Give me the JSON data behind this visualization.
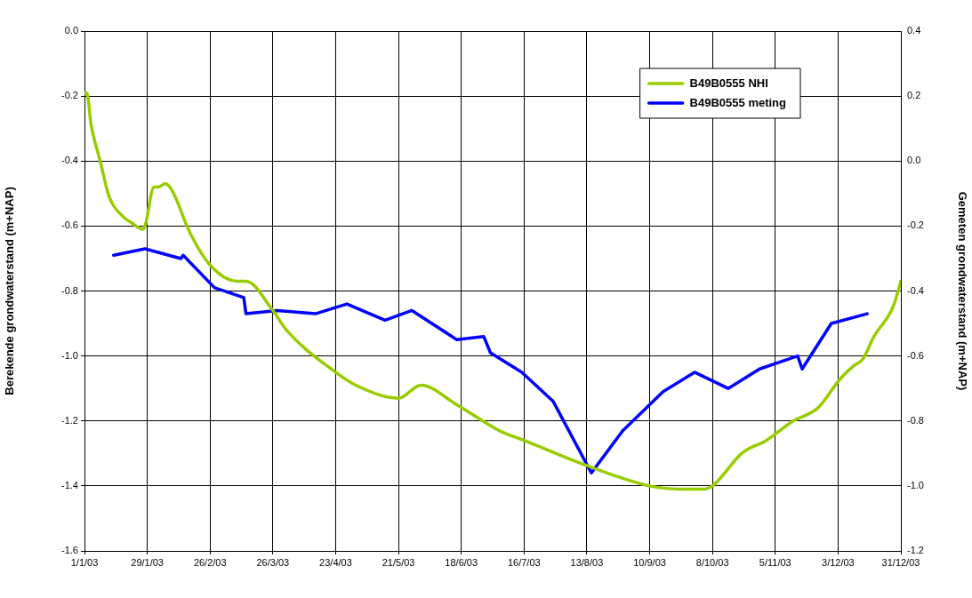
{
  "chart_data": {
    "type": "line",
    "xlabel": null,
    "ylabel": "Berekende grondwaterstand (m+NAP)",
    "y2label": "Gemeten grondwaterstand (m+NAP)",
    "xlim": [
      "2003-01-01",
      "2003-12-31"
    ],
    "xticks": [
      {
        "value": "2003-01-01",
        "label": "1/1/03"
      },
      {
        "value": "2003-01-29",
        "label": "29/1/03"
      },
      {
        "value": "2003-02-26",
        "label": "26/2/03"
      },
      {
        "value": "2003-03-26",
        "label": "26/3/03"
      },
      {
        "value": "2003-04-23",
        "label": "23/4/03"
      },
      {
        "value": "2003-05-21",
        "label": "21/5/03"
      },
      {
        "value": "2003-06-18",
        "label": "18/6/03"
      },
      {
        "value": "2003-07-16",
        "label": "16/7/03"
      },
      {
        "value": "2003-08-13",
        "label": "13/8/03"
      },
      {
        "value": "2003-09-10",
        "label": "10/9/03"
      },
      {
        "value": "2003-10-08",
        "label": "8/10/03"
      },
      {
        "value": "2003-11-05",
        "label": "5/11/03"
      },
      {
        "value": "2003-12-03",
        "label": "3/12/03"
      },
      {
        "value": "2003-12-31",
        "label": "31/12/03"
      }
    ],
    "ylim": [
      -1.6,
      0.0
    ],
    "yticks": [
      -1.6,
      -1.4,
      -1.2,
      {
        "value": -1,
        "label": "-1.0"
      },
      -0.8,
      -0.6,
      -0.4,
      -0.2,
      {
        "value": 0,
        "label": "0.0"
      }
    ],
    "y2lim": [
      -1.2,
      0.4
    ],
    "y2ticks": [
      -1.2,
      {
        "value": -1,
        "label": "-1.0"
      },
      -0.8,
      -0.6,
      -0.4,
      -0.2,
      {
        "value": 0,
        "label": "0.0"
      },
      0.2,
      0.4
    ],
    "grid": true,
    "legend": "top right",
    "marker": "none",
    "line_style": "solid",
    "series": [
      {
        "name": "B49B0555 NHI",
        "color": "#99cc00",
        "x": [
          "2003-01-01",
          "2003-01-02",
          "2003-01-04",
          "2003-01-08",
          "2003-01-12",
          "2003-01-18",
          "2003-01-22",
          "2003-01-27",
          "2003-01-28",
          "2003-02-01",
          "2003-02-03",
          "2003-02-06",
          "2003-02-09",
          "2003-02-17",
          "2003-02-26",
          "2003-03-10",
          "2003-03-14",
          "2003-03-26",
          "2003-04-01",
          "2003-04-23",
          "2003-05-02",
          "2003-05-21",
          "2003-05-31",
          "2003-06-16",
          "2003-07-05",
          "2003-07-16",
          "2003-08-14",
          "2003-09-10",
          "2003-09-25",
          "2003-10-04",
          "2003-10-08",
          "2003-10-11",
          "2003-10-21",
          "2003-11-01",
          "2003-11-13",
          "2003-11-24",
          "2003-12-04",
          "2003-12-10",
          "2003-12-14",
          "2003-12-19",
          "2003-12-26",
          "2003-12-28",
          "2003-12-31"
        ],
        "values": [
          -0.19,
          -0.19,
          -0.29,
          -0.4,
          -0.51,
          -0.57,
          -0.59,
          -0.61,
          -0.6,
          -0.48,
          -0.48,
          -0.47,
          -0.49,
          -0.62,
          -0.72,
          -0.77,
          -0.77,
          -0.86,
          -0.92,
          -1.05,
          -1.09,
          -1.13,
          -1.09,
          -1.15,
          -1.23,
          -1.26,
          -1.34,
          -1.4,
          -1.41,
          -1.41,
          -1.4,
          -1.38,
          -1.3,
          -1.26,
          -1.2,
          -1.16,
          -1.07,
          -1.03,
          -1.01,
          -0.94,
          -0.87,
          -0.84,
          -0.77
        ]
      },
      {
        "name": "B49B0555 meting",
        "color": "#0000ff",
        "axis": "y2",
        "x": [
          "2003-01-14",
          "2003-01-28",
          "2003-02-13",
          "2003-02-14",
          "2003-02-28",
          "2003-03-13",
          "2003-03-14",
          "2003-03-28",
          "2003-04-14",
          "2003-04-28",
          "2003-05-15",
          "2003-05-27",
          "2003-06-16",
          "2003-06-28",
          "2003-07-01",
          "2003-07-15",
          "2003-07-29",
          "2003-08-15",
          "2003-08-29",
          "2003-09-16",
          "2003-09-30",
          "2003-10-15",
          "2003-10-29",
          "2003-11-15",
          "2003-11-17",
          "2003-11-30",
          "2003-12-16"
        ],
        "values": [
          -0.29,
          -0.27,
          -0.3,
          -0.29,
          -0.39,
          -0.42,
          -0.47,
          -0.46,
          -0.47,
          -0.44,
          -0.49,
          -0.46,
          -0.55,
          -0.54,
          -0.59,
          -0.65,
          -0.74,
          -0.96,
          -0.83,
          -0.71,
          -0.65,
          -0.7,
          -0.64,
          -0.6,
          -0.64,
          -0.5,
          -0.47
        ]
      }
    ]
  }
}
